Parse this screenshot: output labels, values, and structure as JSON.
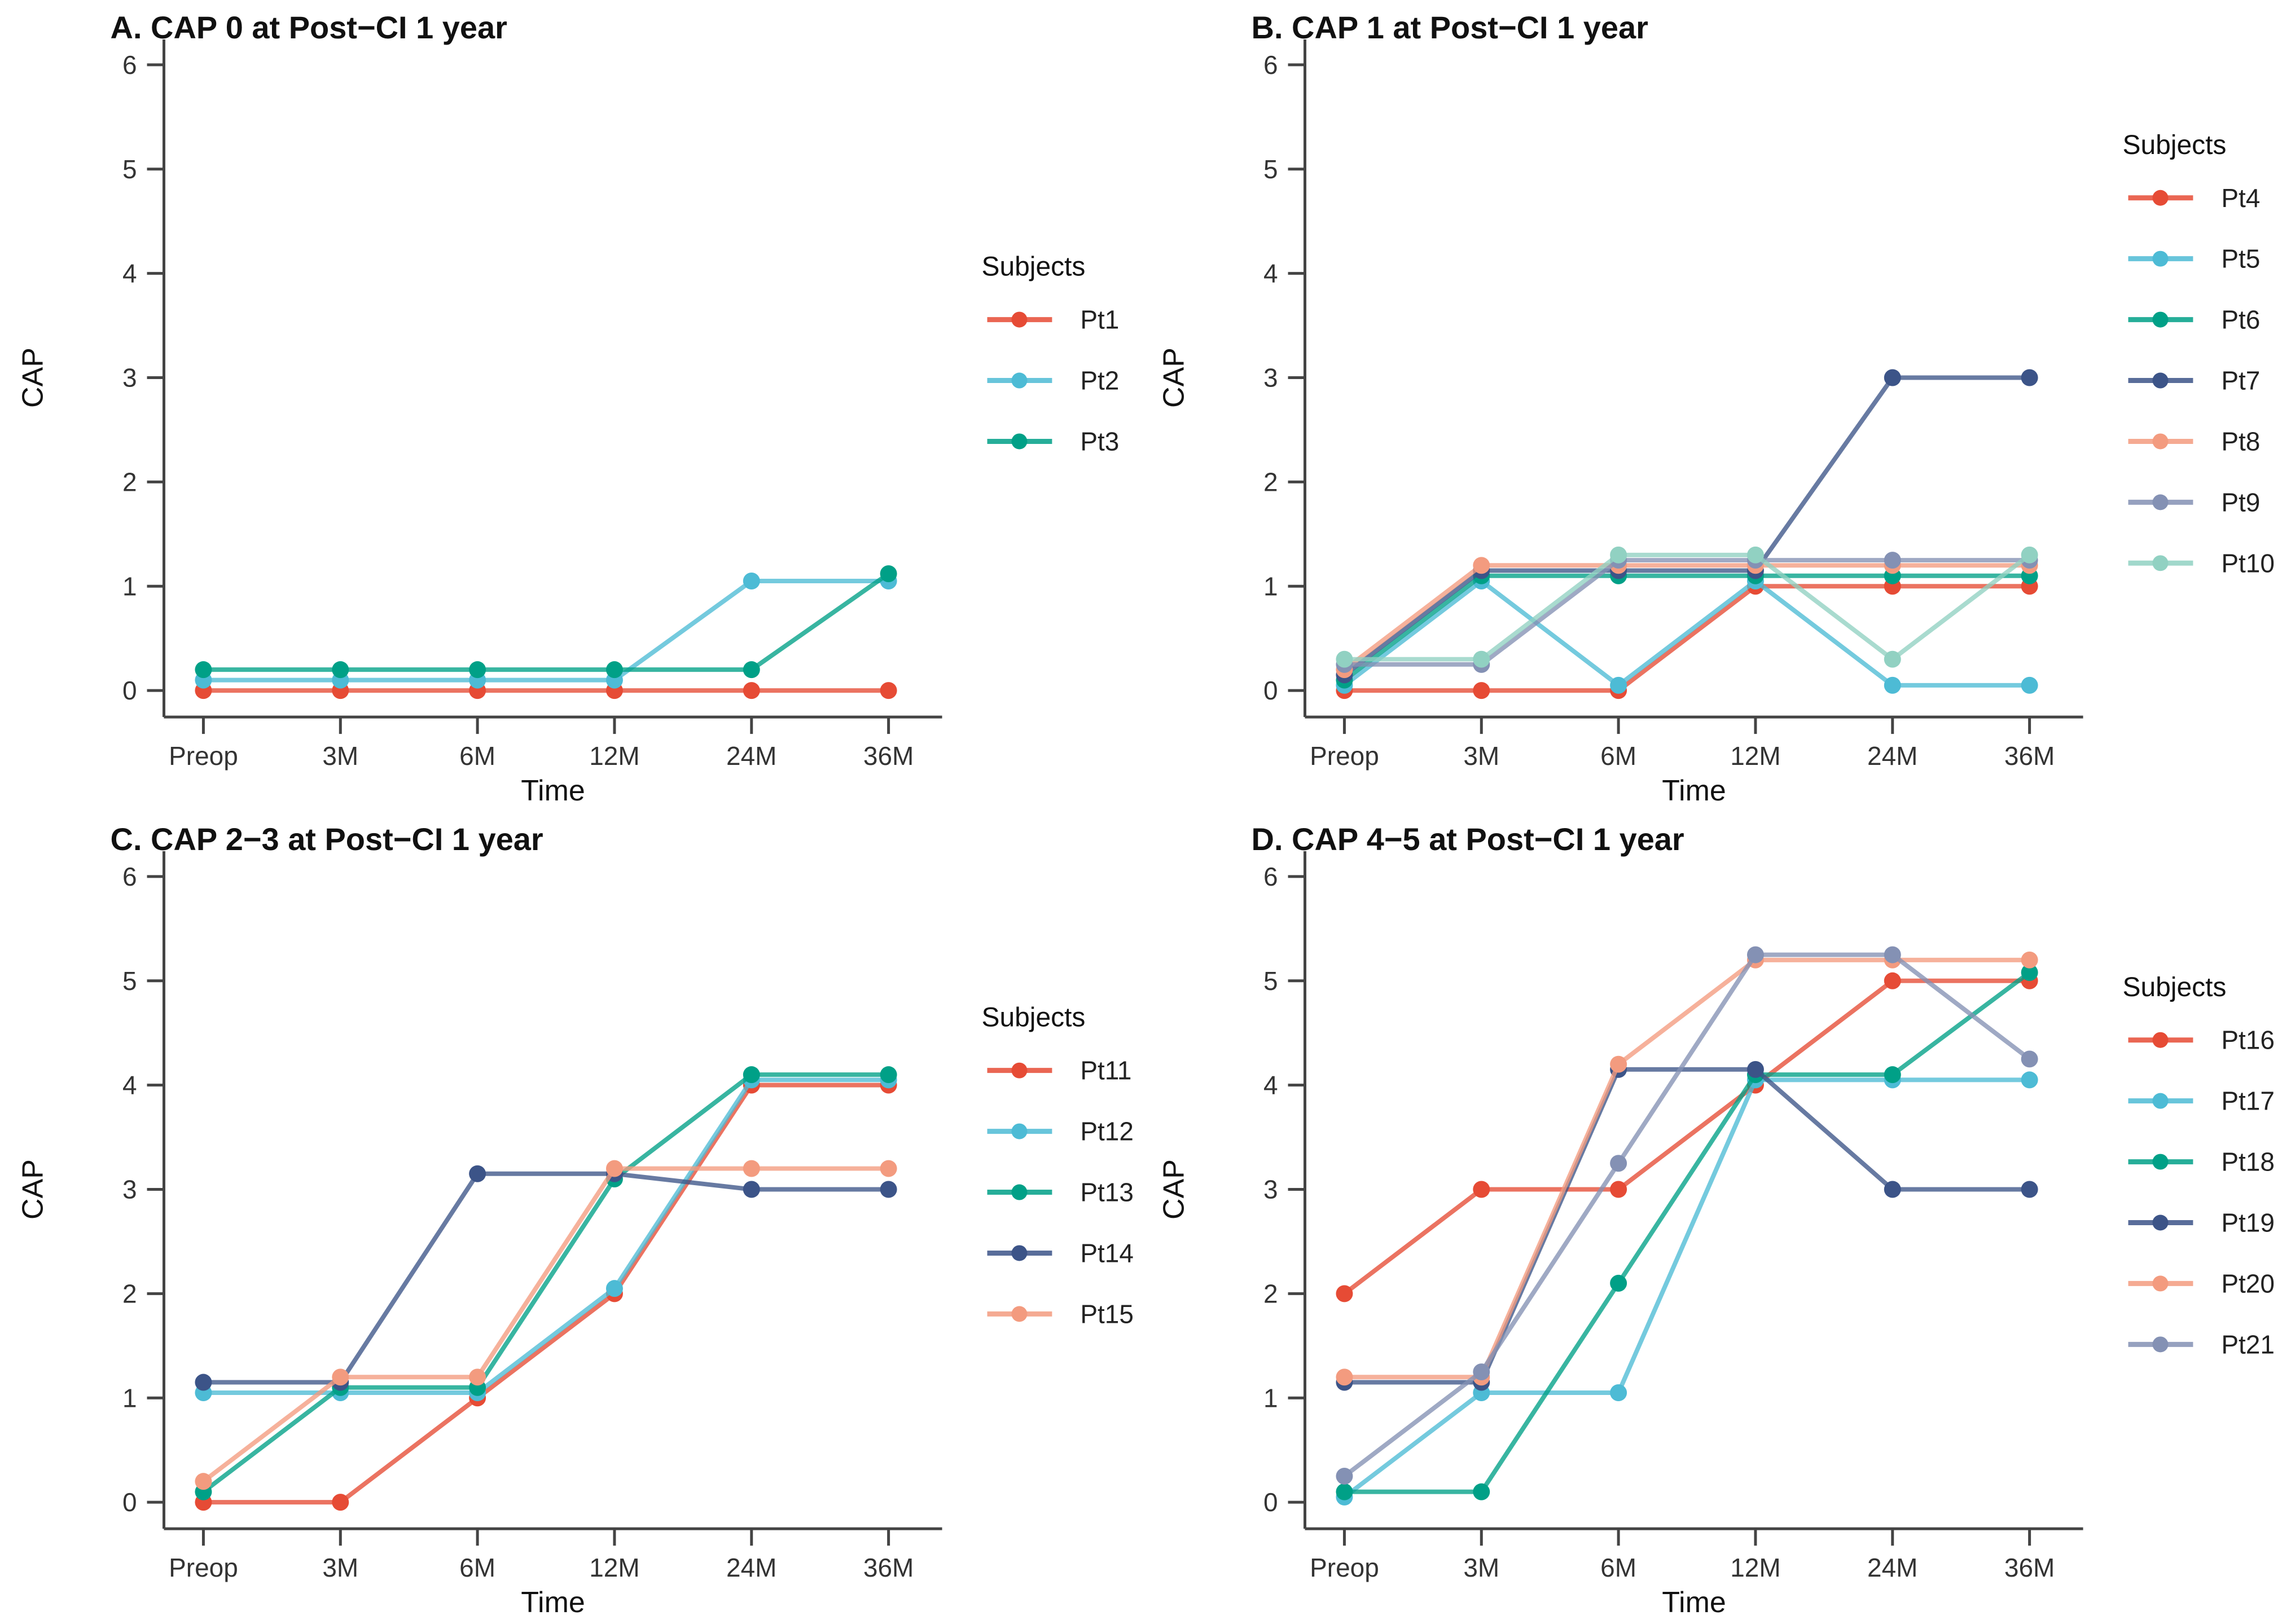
{
  "figure": {
    "background": "#ffffff",
    "axis_color": "#444444",
    "tick_label_color": "#333333",
    "title_color": "#111111"
  },
  "axis": {
    "xlabel": "Time",
    "ylabel": "CAP",
    "categories": [
      "Preop",
      "3M",
      "6M",
      "12M",
      "24M",
      "36M"
    ],
    "yticks": [
      0,
      1,
      2,
      3,
      4,
      5,
      6
    ]
  },
  "legend_title": "Subjects",
  "chart_data": [
    {
      "id": "A",
      "type": "line",
      "title": "A. CAP 0 at Post−CI 1 year",
      "xlabel": "Time",
      "ylabel": "CAP",
      "categories": [
        "Preop",
        "3M",
        "6M",
        "12M",
        "24M",
        "36M"
      ],
      "ylim": [
        0,
        6
      ],
      "grid": false,
      "legend_title": "Subjects",
      "legend_position": "right",
      "series": [
        {
          "name": "Pt1",
          "color": "#E64B35",
          "values": [
            0,
            0,
            0,
            0,
            0,
            0
          ]
        },
        {
          "name": "Pt2",
          "color": "#4DBBD5",
          "values": [
            0.1,
            0.1,
            0.1,
            0.1,
            1.05,
            1.05
          ]
        },
        {
          "name": "Pt3",
          "color": "#00A087",
          "values": [
            0.2,
            0.2,
            0.2,
            0.2,
            0.2,
            1.12
          ]
        }
      ]
    },
    {
      "id": "B",
      "type": "line",
      "title": "B. CAP 1 at Post−CI 1 year",
      "xlabel": "Time",
      "ylabel": "CAP",
      "categories": [
        "Preop",
        "3M",
        "6M",
        "12M",
        "24M",
        "36M"
      ],
      "ylim": [
        0,
        6
      ],
      "grid": false,
      "legend_title": "Subjects",
      "legend_position": "right",
      "series": [
        {
          "name": "Pt4",
          "color": "#E64B35",
          "values": [
            0,
            0,
            0,
            1,
            1,
            1
          ]
        },
        {
          "name": "Pt5",
          "color": "#4DBBD5",
          "values": [
            0.05,
            1.05,
            0.05,
            1.05,
            0.05,
            0.05
          ]
        },
        {
          "name": "Pt6",
          "color": "#00A087",
          "values": [
            0.1,
            1.1,
            1.1,
            1.1,
            1.1,
            1.1
          ]
        },
        {
          "name": "Pt7",
          "color": "#3C5488",
          "values": [
            0.15,
            1.15,
            1.15,
            1.15,
            3,
            3
          ]
        },
        {
          "name": "Pt8",
          "color": "#F39B7F",
          "values": [
            0.2,
            1.2,
            1.2,
            1.2,
            1.2,
            1.2
          ]
        },
        {
          "name": "Pt9",
          "color": "#8491B4",
          "values": [
            0.25,
            0.25,
            1.25,
            1.25,
            1.25,
            1.25
          ]
        },
        {
          "name": "Pt10",
          "color": "#91D1C2",
          "values": [
            0.3,
            0.3,
            1.3,
            1.3,
            0.3,
            1.3
          ]
        }
      ]
    },
    {
      "id": "C",
      "type": "line",
      "title": "C. CAP 2−3 at Post−CI 1 year",
      "xlabel": "Time",
      "ylabel": "CAP",
      "categories": [
        "Preop",
        "3M",
        "6M",
        "12M",
        "24M",
        "36M"
      ],
      "ylim": [
        0,
        6
      ],
      "grid": false,
      "legend_title": "Subjects",
      "legend_position": "right",
      "series": [
        {
          "name": "Pt11",
          "color": "#E64B35",
          "values": [
            0,
            0,
            1,
            2,
            4,
            4
          ]
        },
        {
          "name": "Pt12",
          "color": "#4DBBD5",
          "values": [
            1.05,
            1.05,
            1.05,
            2.05,
            4.05,
            4.05
          ]
        },
        {
          "name": "Pt13",
          "color": "#00A087",
          "values": [
            0.1,
            1.1,
            1.1,
            3.1,
            4.1,
            4.1
          ]
        },
        {
          "name": "Pt14",
          "color": "#3C5488",
          "values": [
            1.15,
            1.15,
            3.15,
            3.15,
            3,
            3
          ]
        },
        {
          "name": "Pt15",
          "color": "#F39B7F",
          "values": [
            0.2,
            1.2,
            1.2,
            3.2,
            3.2,
            3.2
          ]
        }
      ]
    },
    {
      "id": "D",
      "type": "line",
      "title": "D. CAP 4−5 at Post−CI 1 year",
      "xlabel": "Time",
      "ylabel": "CAP",
      "categories": [
        "Preop",
        "3M",
        "6M",
        "12M",
        "24M",
        "36M"
      ],
      "ylim": [
        0,
        6
      ],
      "grid": false,
      "legend_title": "Subjects",
      "legend_position": "right",
      "series": [
        {
          "name": "Pt16",
          "color": "#E64B35",
          "values": [
            2,
            3,
            3,
            4,
            5,
            5
          ]
        },
        {
          "name": "Pt17",
          "color": "#4DBBD5",
          "values": [
            0.05,
            1.05,
            1.05,
            4.05,
            4.05,
            4.05
          ]
        },
        {
          "name": "Pt18",
          "color": "#00A087",
          "values": [
            0.1,
            0.1,
            2.1,
            4.1,
            4.1,
            5.08
          ]
        },
        {
          "name": "Pt19",
          "color": "#3C5488",
          "values": [
            1.15,
            1.15,
            4.15,
            4.15,
            3,
            3
          ]
        },
        {
          "name": "Pt20",
          "color": "#F39B7F",
          "values": [
            1.2,
            1.2,
            4.2,
            5.2,
            5.2,
            5.2
          ]
        },
        {
          "name": "Pt21",
          "color": "#8491B4",
          "values": [
            0.25,
            1.25,
            3.25,
            5.25,
            5.25,
            4.25
          ]
        }
      ]
    }
  ]
}
